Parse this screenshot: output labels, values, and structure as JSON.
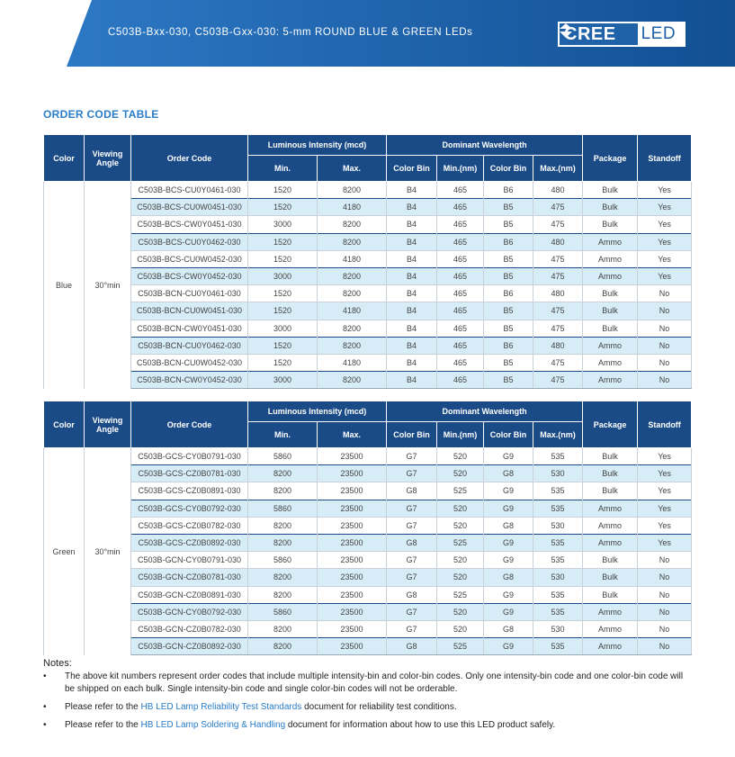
{
  "header": {
    "title": "C503B-Bxx-030, C503B-Gxx-030: 5-mm ROUND BLUE & GREEN LEDs",
    "logo": {
      "left": "CREE",
      "right": "LED"
    },
    "colors": {
      "primary": "#1f62a8",
      "accent": "#2a7cc7",
      "table_header": "#1b4b86",
      "row_highlight": "#d6ecf7"
    }
  },
  "section_title": "ORDER CODE TABLE",
  "table_headers": {
    "color": "Color",
    "viewing_angle": "Viewing Angle",
    "order_code": "Order Code",
    "luminous_intensity": "Luminous Intensity (mcd)",
    "dominant_wavelength": "Dominant Wavelength",
    "package": "Package",
    "standoff": "Standoff",
    "min": "Min.",
    "max": "Max.",
    "color_bin": "Color Bin",
    "min_nm": "Min.(nm)",
    "max_nm": "Max.(nm)"
  },
  "tables": [
    {
      "color": "Blue",
      "viewing_angle": "30°min",
      "rows": [
        {
          "code": "C503B-BCS-CU0Y0461-030",
          "li_min": "1520",
          "li_max": "8200",
          "bin1": "B4",
          "wl_min": "465",
          "bin2": "B6",
          "wl_max": "480",
          "package": "Bulk",
          "standoff": "Yes"
        },
        {
          "code": "C503B-BCS-CU0W0451-030",
          "li_min": "1520",
          "li_max": "4180",
          "bin1": "B4",
          "wl_min": "465",
          "bin2": "B5",
          "wl_max": "475",
          "package": "Bulk",
          "standoff": "Yes"
        },
        {
          "code": "C503B-BCS-CW0Y0451-030",
          "li_min": "3000",
          "li_max": "8200",
          "bin1": "B4",
          "wl_min": "465",
          "bin2": "B5",
          "wl_max": "475",
          "package": "Bulk",
          "standoff": "Yes"
        },
        {
          "code": "C503B-BCS-CU0Y0462-030",
          "li_min": "1520",
          "li_max": "8200",
          "bin1": "B4",
          "wl_min": "465",
          "bin2": "B6",
          "wl_max": "480",
          "package": "Ammo",
          "standoff": "Yes"
        },
        {
          "code": "C503B-BCS-CU0W0452-030",
          "li_min": "1520",
          "li_max": "4180",
          "bin1": "B4",
          "wl_min": "465",
          "bin2": "B5",
          "wl_max": "475",
          "package": "Ammo",
          "standoff": "Yes"
        },
        {
          "code": "C503B-BCS-CW0Y0452-030",
          "li_min": "3000",
          "li_max": "8200",
          "bin1": "B4",
          "wl_min": "465",
          "bin2": "B5",
          "wl_max": "475",
          "package": "Ammo",
          "standoff": "Yes"
        },
        {
          "code": "C503B-BCN-CU0Y0461-030",
          "li_min": "1520",
          "li_max": "8200",
          "bin1": "B4",
          "wl_min": "465",
          "bin2": "B6",
          "wl_max": "480",
          "package": "Bulk",
          "standoff": "No"
        },
        {
          "code": "C503B-BCN-CU0W0451-030",
          "li_min": "1520",
          "li_max": "4180",
          "bin1": "B4",
          "wl_min": "465",
          "bin2": "B5",
          "wl_max": "475",
          "package": "Bulk",
          "standoff": "No"
        },
        {
          "code": "C503B-BCN-CW0Y0451-030",
          "li_min": "3000",
          "li_max": "8200",
          "bin1": "B4",
          "wl_min": "465",
          "bin2": "B5",
          "wl_max": "475",
          "package": "Bulk",
          "standoff": "No"
        },
        {
          "code": "C503B-BCN-CU0Y0462-030",
          "li_min": "1520",
          "li_max": "8200",
          "bin1": "B4",
          "wl_min": "465",
          "bin2": "B6",
          "wl_max": "480",
          "package": "Ammo",
          "standoff": "No"
        },
        {
          "code": "C503B-BCN-CU0W0452-030",
          "li_min": "1520",
          "li_max": "4180",
          "bin1": "B4",
          "wl_min": "465",
          "bin2": "B5",
          "wl_max": "475",
          "package": "Ammo",
          "standoff": "No"
        },
        {
          "code": "C503B-BCN-CW0Y0452-030",
          "li_min": "3000",
          "li_max": "8200",
          "bin1": "B4",
          "wl_min": "465",
          "bin2": "B5",
          "wl_max": "475",
          "package": "Ammo",
          "standoff": "No"
        }
      ]
    },
    {
      "color": "Green",
      "viewing_angle": "30°min",
      "rows": [
        {
          "code": "C503B-GCS-CY0B0791-030",
          "li_min": "5860",
          "li_max": "23500",
          "bin1": "G7",
          "wl_min": "520",
          "bin2": "G9",
          "wl_max": "535",
          "package": "Bulk",
          "standoff": "Yes"
        },
        {
          "code": "C503B-GCS-CZ0B0781-030",
          "li_min": "8200",
          "li_max": "23500",
          "bin1": "G7",
          "wl_min": "520",
          "bin2": "G8",
          "wl_max": "530",
          "package": "Bulk",
          "standoff": "Yes"
        },
        {
          "code": "C503B-GCS-CZ0B0891-030",
          "li_min": "8200",
          "li_max": "23500",
          "bin1": "G8",
          "wl_min": "525",
          "bin2": "G9",
          "wl_max": "535",
          "package": "Bulk",
          "standoff": "Yes"
        },
        {
          "code": "C503B-GCS-CY0B0792-030",
          "li_min": "5860",
          "li_max": "23500",
          "bin1": "G7",
          "wl_min": "520",
          "bin2": "G9",
          "wl_max": "535",
          "package": "Ammo",
          "standoff": "Yes"
        },
        {
          "code": "C503B-GCS-CZ0B0782-030",
          "li_min": "8200",
          "li_max": "23500",
          "bin1": "G7",
          "wl_min": "520",
          "bin2": "G8",
          "wl_max": "530",
          "package": "Ammo",
          "standoff": "Yes"
        },
        {
          "code": "C503B-GCS-CZ0B0892-030",
          "li_min": "8200",
          "li_max": "23500",
          "bin1": "G8",
          "wl_min": "525",
          "bin2": "G9",
          "wl_max": "535",
          "package": "Ammo",
          "standoff": "Yes"
        },
        {
          "code": "C503B-GCN-CY0B0791-030",
          "li_min": "5860",
          "li_max": "23500",
          "bin1": "G7",
          "wl_min": "520",
          "bin2": "G9",
          "wl_max": "535",
          "package": "Bulk",
          "standoff": "No"
        },
        {
          "code": "C503B-GCN-CZ0B0781-030",
          "li_min": "8200",
          "li_max": "23500",
          "bin1": "G7",
          "wl_min": "520",
          "bin2": "G8",
          "wl_max": "530",
          "package": "Bulk",
          "standoff": "No"
        },
        {
          "code": "C503B-GCN-CZ0B0891-030",
          "li_min": "8200",
          "li_max": "23500",
          "bin1": "G8",
          "wl_min": "525",
          "bin2": "G9",
          "wl_max": "535",
          "package": "Bulk",
          "standoff": "No"
        },
        {
          "code": "C503B-GCN-CY0B0792-030",
          "li_min": "5860",
          "li_max": "23500",
          "bin1": "G7",
          "wl_min": "520",
          "bin2": "G9",
          "wl_max": "535",
          "package": "Ammo",
          "standoff": "No"
        },
        {
          "code": "C503B-GCN-CZ0B0782-030",
          "li_min": "8200",
          "li_max": "23500",
          "bin1": "G7",
          "wl_min": "520",
          "bin2": "G8",
          "wl_max": "530",
          "package": "Ammo",
          "standoff": "No"
        },
        {
          "code": "C503B-GCN-CZ0B0892-030",
          "li_min": "8200",
          "li_max": "23500",
          "bin1": "G8",
          "wl_min": "525",
          "bin2": "G9",
          "wl_max": "535",
          "package": "Ammo",
          "standoff": "No"
        }
      ]
    }
  ],
  "notes": {
    "title": "Notes:",
    "bullet": "•",
    "note1": "The above kit numbers represent order codes that include multiple intensity-bin and color-bin codes. Only one intensity-bin code and one color-bin code will be shipped on each bulk. Single intensity-bin code and single color-bin codes will not be orderable.",
    "note2_pre": "Please refer to the ",
    "note2_link": "HB LED Lamp Reliability Test Standards",
    "note2_post": " document for reliability test conditions.",
    "note3_pre": "Please refer to the ",
    "note3_link": "HB LED Lamp Soldering & Handling",
    "note3_post": " document for information about how to use this LED product safely."
  }
}
